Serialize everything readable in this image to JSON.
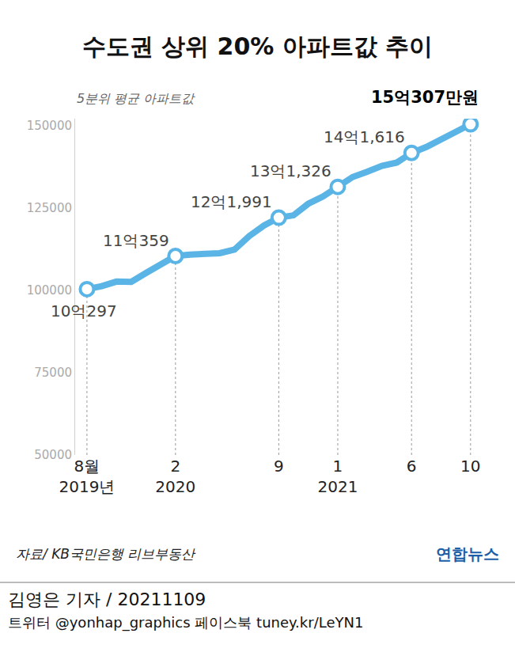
{
  "chart_data": {
    "type": "line",
    "title": "수도권 상위 20% 아파트값 추이",
    "subtitle": "5분위 평균 아파트값",
    "categories": [
      "8월\n2019년",
      null,
      null,
      null,
      null,
      null,
      "2\n2020",
      null,
      null,
      null,
      null,
      null,
      null,
      "9",
      null,
      null,
      null,
      "1\n2021",
      null,
      null,
      null,
      null,
      "6",
      null,
      null,
      null,
      "10"
    ],
    "values": [
      100297,
      101200,
      102600,
      102500,
      105200,
      107600,
      110359,
      110800,
      111100,
      111200,
      112300,
      116400,
      119600,
      121991,
      122700,
      126200,
      128400,
      131326,
      134300,
      135900,
      137700,
      138700,
      141616,
      143400,
      145700,
      148000,
      150307
    ],
    "value_labels": [
      "10억297",
      null,
      null,
      null,
      null,
      null,
      "11억359",
      null,
      null,
      null,
      null,
      null,
      null,
      "12억1,991",
      null,
      null,
      null,
      "13억1,326",
      null,
      null,
      null,
      null,
      "14억1,616",
      null,
      null,
      null,
      "15억307만원"
    ],
    "data_labels": true,
    "color": "#5ab4e5",
    "marker": "circle",
    "ylim": [
      50000,
      152000
    ],
    "yticks": [
      50000,
      75000,
      100000,
      125000,
      150000
    ],
    "grid": false,
    "source": "자료/ KB국민은행 리브부동산",
    "logo": "연합뉴스"
  },
  "footer": {
    "byline": "김영은 기자 / 20211109",
    "social": "트위터 @yonhap_graphics  페이스북 tuney.kr/LeYN1"
  }
}
